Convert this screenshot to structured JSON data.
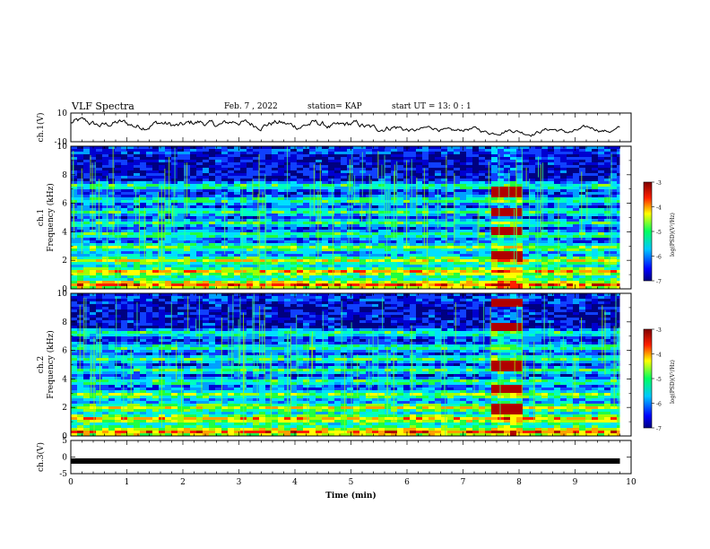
{
  "header": {
    "title": "VLF Spectra",
    "date": "Feb. 7 , 2022",
    "station": "station= KAP",
    "start": "start UT =  13: 0  : 1"
  },
  "chart_data": [
    {
      "type": "line",
      "panel": "ch1-waveform",
      "ylabel": "ch.1(V)",
      "ylim": [
        -10,
        10
      ],
      "yticks": [
        "10",
        "-10"
      ],
      "xlim": [
        0,
        10
      ],
      "color": "#000000",
      "approx_envelope": {
        "x": [
          0,
          1,
          2,
          3,
          4,
          5,
          6,
          7,
          8,
          9,
          9.8
        ],
        "y": [
          3,
          2,
          2,
          3,
          2,
          1,
          -1,
          -2,
          -3,
          -2,
          -1
        ]
      }
    },
    {
      "type": "heatmap",
      "panel": "ch1-spectrogram",
      "ylabel": "ch.1\nFrequency (kHz)",
      "ylim": [
        0,
        10
      ],
      "xlim": [
        0,
        10
      ],
      "yticks": [
        "0",
        "2",
        "4",
        "6",
        "8",
        "10"
      ],
      "data_end_min": 9.8,
      "colorscale": [
        "#000080",
        "#0000ff",
        "#00ffff",
        "#00ff00",
        "#ffff00",
        "#ff0000",
        "#800000"
      ],
      "colorbar": {
        "label": "log(PSD)(V²/Hz)",
        "range": [
          -7,
          -3
        ],
        "ticks": [
          "-3",
          "-4",
          "-5",
          "-6",
          "-7"
        ]
      },
      "strong_lines_khz": [
        0.3,
        1.2,
        2.0,
        2.9,
        3.8,
        4.6,
        5.4,
        6.2,
        7.2
      ],
      "event": {
        "t_start_min": 7.5,
        "t_end_min": 8.0,
        "bands_khz": [
          2.3,
          4.1,
          5.4,
          6.8
        ]
      }
    },
    {
      "type": "heatmap",
      "panel": "ch2-spectrogram",
      "ylabel": "ch.2\nFrequency (kHz)",
      "ylim": [
        0,
        10
      ],
      "xlim": [
        0,
        10
      ],
      "yticks": [
        "0",
        "2",
        "4",
        "6",
        "8",
        "10"
      ],
      "data_end_min": 9.8,
      "colorscale": [
        "#000080",
        "#0000ff",
        "#00ffff",
        "#00ff00",
        "#ffff00",
        "#ff0000",
        "#800000"
      ],
      "colorbar": {
        "label": "log(PSD)(V²/Hz)",
        "range": [
          -7,
          -3
        ],
        "ticks": [
          "-3",
          "-4",
          "-5",
          "-6",
          "-7"
        ]
      },
      "strong_lines_khz": [
        0.3,
        1.2,
        2.0,
        2.9,
        3.8,
        4.6,
        5.4,
        6.2,
        7.2
      ],
      "event": {
        "t_start_min": 7.5,
        "t_end_min": 8.0,
        "bands_khz": [
          1.9,
          3.3,
          4.9,
          7.6,
          9.4
        ]
      }
    },
    {
      "type": "line",
      "panel": "ch3-signal",
      "ylabel": "ch.3(V)",
      "ylim": [
        -5,
        5
      ],
      "yticks": [
        "5",
        "0",
        "-5"
      ],
      "xlim": [
        0,
        10
      ],
      "xlabel": "Time  (min)",
      "xticks": [
        "0",
        "1",
        "2",
        "3",
        "4",
        "5",
        "6",
        "7",
        "8",
        "9",
        "10"
      ],
      "x": [
        0,
        9.8
      ],
      "y": [
        -1.2,
        -1.2
      ],
      "color": "#000000"
    }
  ]
}
